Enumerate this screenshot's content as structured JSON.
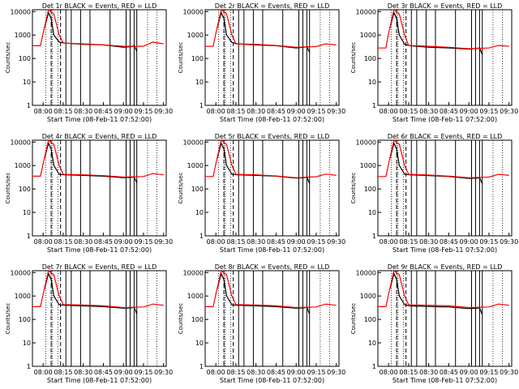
{
  "colors": {
    "events": "#000000",
    "lld": "#ff0000",
    "background": "#ffffff"
  },
  "panel_axes": {
    "xtick_labels": [
      "08:00",
      "08:15",
      "08:30",
      "08:45",
      "09:00",
      "09:15",
      "09:30"
    ],
    "ytick_labels": [
      "1",
      "10",
      "100",
      "1000",
      "10000"
    ],
    "ylabel": "Counts/sec",
    "xlabel": "Start Time (08-Feb-11 07:52:00)"
  },
  "chart_data": [
    {
      "type": "line",
      "title": "Det 1r BLACK = Events, RED = LLD",
      "xlabel": "Start Time (08-Feb-11 07:52:00)",
      "ylabel": "Counts/sec",
      "xlim": [
        "07:52",
        "09:32"
      ],
      "ylim": [
        1,
        12000
      ],
      "yscale": "log",
      "grid": false,
      "series": [
        {
          "name": "Events",
          "x": [
            "08:01",
            "08:04",
            "08:06",
            "08:08",
            "08:12",
            "08:16",
            "08:30",
            "08:45",
            "09:00",
            "09:06",
            "09:08",
            "09:10"
          ],
          "values": [
            2000,
            9000,
            5000,
            1000,
            500,
            450,
            400,
            380,
            300,
            320,
            350,
            200
          ]
        },
        {
          "name": "LLD",
          "x": [
            "07:52",
            "07:58",
            "08:00",
            "08:04",
            "08:08",
            "08:12",
            "08:15",
            "08:30",
            "08:45",
            "09:00",
            "09:15",
            "09:22",
            "09:30"
          ],
          "values": [
            350,
            350,
            1200,
            12000,
            8000,
            1000,
            450,
            420,
            380,
            330,
            330,
            500,
            420
          ]
        }
      ]
    },
    {
      "type": "line",
      "title": "Det 2r BLACK = Events, RED = LLD",
      "xlabel": "Start Time (08-Feb-11 07:52:00)",
      "ylabel": "Counts/sec",
      "xlim": [
        "07:52",
        "09:32"
      ],
      "ylim": [
        1,
        12000
      ],
      "yscale": "log",
      "grid": false,
      "series": [
        {
          "name": "Events",
          "x": [
            "08:01",
            "08:04",
            "08:06",
            "08:08",
            "08:12",
            "08:16",
            "08:30",
            "08:45",
            "09:00",
            "09:06",
            "09:08",
            "09:10"
          ],
          "values": [
            2000,
            9000,
            5000,
            1000,
            480,
            420,
            380,
            350,
            280,
            300,
            320,
            180
          ]
        },
        {
          "name": "LLD",
          "x": [
            "07:52",
            "07:58",
            "08:00",
            "08:04",
            "08:08",
            "08:12",
            "08:15",
            "08:30",
            "08:45",
            "09:00",
            "09:15",
            "09:22",
            "09:30"
          ],
          "values": [
            330,
            330,
            1200,
            12000,
            8000,
            1000,
            420,
            400,
            360,
            300,
            320,
            420,
            380
          ]
        }
      ]
    },
    {
      "type": "line",
      "title": "Det 3r BLACK = Events, RED = LLD",
      "xlabel": "Start Time (08-Feb-11 07:52:00)",
      "ylabel": "Counts/sec",
      "xlim": [
        "07:52",
        "09:32"
      ],
      "ylim": [
        1,
        12000
      ],
      "yscale": "log",
      "grid": false,
      "series": [
        {
          "name": "Events",
          "x": [
            "08:01",
            "08:04",
            "08:06",
            "08:08",
            "08:12",
            "08:16",
            "08:30",
            "08:45",
            "09:00",
            "09:06",
            "09:08",
            "09:10"
          ],
          "values": [
            2000,
            9000,
            5000,
            1000,
            400,
            350,
            300,
            280,
            250,
            270,
            280,
            150
          ]
        },
        {
          "name": "LLD",
          "x": [
            "07:52",
            "07:58",
            "08:00",
            "08:04",
            "08:08",
            "08:12",
            "08:15",
            "08:30",
            "08:45",
            "09:00",
            "09:15",
            "09:22",
            "09:30"
          ],
          "values": [
            280,
            280,
            1200,
            12000,
            8000,
            1000,
            360,
            330,
            300,
            260,
            280,
            360,
            330
          ]
        }
      ]
    },
    {
      "type": "line",
      "title": "Det 4r BLACK = Events, RED = LLD",
      "xlabel": "Start Time (08-Feb-11 07:52:00)",
      "ylabel": "Counts/sec",
      "xlim": [
        "07:52",
        "09:32"
      ],
      "ylim": [
        1,
        12000
      ],
      "yscale": "log",
      "grid": false,
      "series": [
        {
          "name": "Events",
          "x": [
            "08:01",
            "08:04",
            "08:06",
            "08:08",
            "08:12",
            "08:16",
            "08:30",
            "08:45",
            "09:00",
            "09:06",
            "09:08",
            "09:10"
          ],
          "values": [
            2000,
            9000,
            5000,
            1000,
            420,
            400,
            380,
            350,
            300,
            310,
            320,
            180
          ]
        },
        {
          "name": "LLD",
          "x": [
            "07:52",
            "07:58",
            "08:00",
            "08:04",
            "08:08",
            "08:12",
            "08:15",
            "08:30",
            "08:45",
            "09:00",
            "09:15",
            "09:22",
            "09:30"
          ],
          "values": [
            350,
            350,
            1200,
            12000,
            8000,
            1000,
            420,
            400,
            370,
            320,
            340,
            450,
            400
          ]
        }
      ]
    },
    {
      "type": "line",
      "title": "Det 5r BLACK = Events, RED = LLD",
      "xlabel": "Start Time (08-Feb-11 07:52:00)",
      "ylabel": "Counts/sec",
      "xlim": [
        "07:52",
        "09:32"
      ],
      "ylim": [
        1,
        12000
      ],
      "yscale": "log",
      "grid": false,
      "series": [
        {
          "name": "Events",
          "x": [
            "08:01",
            "08:04",
            "08:06",
            "08:08",
            "08:12",
            "08:16",
            "08:30",
            "08:45",
            "09:00",
            "09:06",
            "09:08",
            "09:10"
          ],
          "values": [
            2000,
            9000,
            5000,
            1000,
            420,
            400,
            380,
            350,
            290,
            300,
            320,
            170
          ]
        },
        {
          "name": "LLD",
          "x": [
            "07:52",
            "07:58",
            "08:00",
            "08:04",
            "08:08",
            "08:12",
            "08:15",
            "08:30",
            "08:45",
            "09:00",
            "09:15",
            "09:22",
            "09:30"
          ],
          "values": [
            340,
            340,
            1200,
            12000,
            8000,
            1000,
            420,
            400,
            360,
            300,
            330,
            430,
            380
          ]
        }
      ]
    },
    {
      "type": "line",
      "title": "Det 6r BLACK = Events, RED = LLD",
      "xlabel": "Start Time (08-Feb-11 07:52:00)",
      "ylabel": "Counts/sec",
      "xlim": [
        "07:52",
        "09:32"
      ],
      "ylim": [
        1,
        12000
      ],
      "yscale": "log",
      "grid": false,
      "series": [
        {
          "name": "Events",
          "x": [
            "08:01",
            "08:04",
            "08:06",
            "08:08",
            "08:12",
            "08:16",
            "08:30",
            "08:45",
            "09:00",
            "09:06",
            "09:08",
            "09:10"
          ],
          "values": [
            2000,
            9000,
            5000,
            1000,
            420,
            400,
            370,
            340,
            280,
            290,
            300,
            170
          ]
        },
        {
          "name": "LLD",
          "x": [
            "07:52",
            "07:58",
            "08:00",
            "08:04",
            "08:08",
            "08:12",
            "08:15",
            "08:30",
            "08:45",
            "09:00",
            "09:15",
            "09:22",
            "09:30"
          ],
          "values": [
            340,
            340,
            1200,
            12000,
            8000,
            1000,
            420,
            390,
            350,
            300,
            320,
            420,
            380
          ]
        }
      ]
    },
    {
      "type": "line",
      "title": "Det 7r BLACK = Events, RED = LLD",
      "xlabel": "Start Time (08-Feb-11 07:52:00)",
      "ylabel": "Counts/sec",
      "xlim": [
        "07:52",
        "09:32"
      ],
      "ylim": [
        1,
        12000
      ],
      "yscale": "log",
      "grid": false,
      "series": [
        {
          "name": "Events",
          "x": [
            "08:01",
            "08:04",
            "08:06",
            "08:08",
            "08:12",
            "08:16",
            "08:30",
            "08:45",
            "09:00",
            "09:06",
            "09:08",
            "09:10"
          ],
          "values": [
            2000,
            9000,
            5000,
            1000,
            420,
            400,
            380,
            350,
            300,
            310,
            330,
            170
          ]
        },
        {
          "name": "LLD",
          "x": [
            "07:52",
            "07:58",
            "08:00",
            "08:04",
            "08:08",
            "08:12",
            "08:15",
            "08:30",
            "08:45",
            "09:00",
            "09:15",
            "09:22",
            "09:30"
          ],
          "values": [
            350,
            350,
            1200,
            12000,
            8000,
            1000,
            430,
            410,
            380,
            320,
            340,
            450,
            400
          ]
        }
      ]
    },
    {
      "type": "line",
      "title": "Det 8r BLACK = Events, RED = LLD",
      "xlabel": "Start Time (08-Feb-11 07:52:00)",
      "ylabel": "Counts/sec",
      "xlim": [
        "07:52",
        "09:32"
      ],
      "ylim": [
        1,
        12000
      ],
      "yscale": "log",
      "grid": false,
      "series": [
        {
          "name": "Events",
          "x": [
            "08:01",
            "08:04",
            "08:06",
            "08:08",
            "08:12",
            "08:16",
            "08:30",
            "08:45",
            "09:00",
            "09:06",
            "09:08",
            "09:10"
          ],
          "values": [
            2000,
            9000,
            5000,
            1000,
            420,
            400,
            380,
            350,
            300,
            310,
            330,
            170
          ]
        },
        {
          "name": "LLD",
          "x": [
            "07:52",
            "07:58",
            "08:00",
            "08:04",
            "08:08",
            "08:12",
            "08:15",
            "08:30",
            "08:45",
            "09:00",
            "09:15",
            "09:22",
            "09:30"
          ],
          "values": [
            350,
            350,
            1200,
            12000,
            8000,
            1000,
            430,
            410,
            380,
            320,
            340,
            450,
            400
          ]
        }
      ]
    },
    {
      "type": "line",
      "title": "Det 9r BLACK = Events, RED = LLD",
      "xlabel": "Start Time (08-Feb-11 07:52:00)",
      "ylabel": "Counts/sec",
      "xlim": [
        "07:52",
        "09:32"
      ],
      "ylim": [
        1,
        12000
      ],
      "yscale": "log",
      "grid": false,
      "series": [
        {
          "name": "Events",
          "x": [
            "08:01",
            "08:04",
            "08:06",
            "08:08",
            "08:12",
            "08:16",
            "08:30",
            "08:45",
            "09:00",
            "09:06",
            "09:08",
            "09:10"
          ],
          "values": [
            2000,
            9000,
            5000,
            1000,
            420,
            380,
            360,
            340,
            290,
            300,
            310,
            160
          ]
        },
        {
          "name": "LLD",
          "x": [
            "07:52",
            "07:58",
            "08:00",
            "08:04",
            "08:08",
            "08:12",
            "08:15",
            "08:30",
            "08:45",
            "09:00",
            "09:15",
            "09:22",
            "09:30"
          ],
          "values": [
            350,
            350,
            1200,
            12000,
            8000,
            1000,
            420,
            400,
            380,
            320,
            340,
            450,
            400
          ]
        }
      ]
    }
  ]
}
